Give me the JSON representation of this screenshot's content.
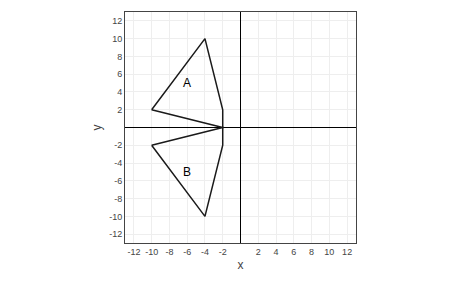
{
  "chart_data": {
    "type": "line",
    "series": [
      {
        "color": "#1a1a1a",
        "x": [
          -10,
          -4,
          -2,
          -2,
          -10
        ],
        "values": [
          2,
          10,
          2,
          0,
          2
        ]
      },
      {
        "color": "#1a1a1a",
        "x": [
          -10,
          -4,
          -2,
          -2,
          -10
        ],
        "values": [
          -2,
          -10,
          -2,
          0,
          -2
        ]
      }
    ],
    "annotations": [
      {
        "text": "A",
        "x": -6,
        "y": 5
      },
      {
        "text": "B",
        "x": -6,
        "y": -5
      }
    ],
    "xlabel": "x",
    "ylabel": "y",
    "xlim": [
      -13,
      13
    ],
    "ylim": [
      -13,
      13
    ],
    "xticks": [
      -12,
      -10,
      -8,
      -6,
      -4,
      -2,
      2,
      4,
      6,
      8,
      10,
      12
    ],
    "yticks": [
      -12,
      -10,
      -8,
      -6,
      -4,
      -2,
      2,
      4,
      6,
      8,
      10,
      12
    ],
    "grid": true
  }
}
